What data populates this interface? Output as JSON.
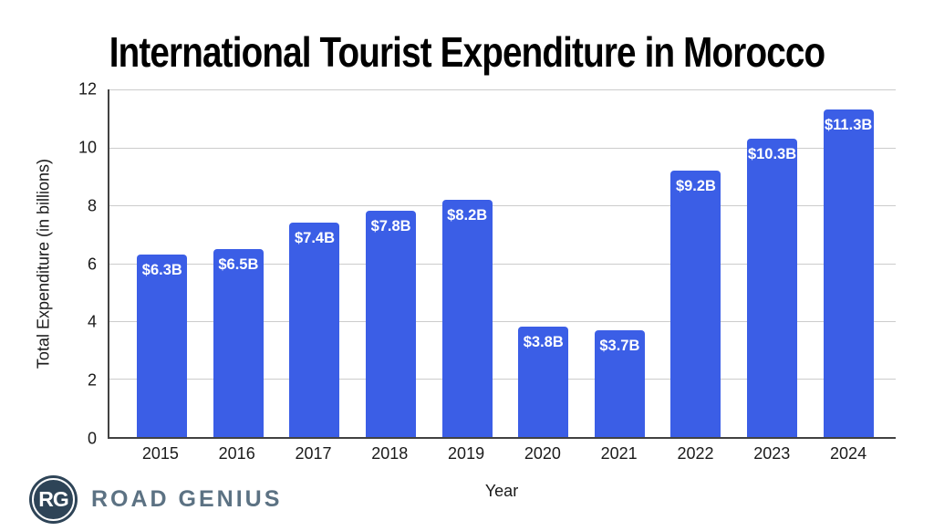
{
  "title": "International Tourist Expenditure in Morocco",
  "chart_data": {
    "type": "bar",
    "title": "International Tourist Expenditure in Morocco",
    "xlabel": "Year",
    "ylabel": "Total Expenditure (in billions)",
    "categories": [
      "2015",
      "2016",
      "2017",
      "2018",
      "2019",
      "2020",
      "2021",
      "2022",
      "2023",
      "2024"
    ],
    "values": [
      6.3,
      6.5,
      7.4,
      7.8,
      8.2,
      3.8,
      3.7,
      9.2,
      10.3,
      11.3
    ],
    "bar_labels": [
      "$6.3B",
      "$6.5B",
      "$7.4B",
      "$7.8B",
      "$8.2B",
      "$3.8B",
      "$3.7B",
      "$9.2B",
      "$10.3B",
      "$11.3B"
    ],
    "ylim": [
      0,
      12
    ],
    "ytick_labels": [
      "12",
      "10",
      "8",
      "6",
      "4",
      "2",
      "0"
    ],
    "grid": "horizontal",
    "legend": "none",
    "colors": {
      "bar": "#3b5ee6",
      "bar_label": "#ffffff",
      "gridline": "#cccccc",
      "axis": "#424242",
      "text": "#1a1a1a"
    }
  },
  "branding": {
    "monogram": "RG",
    "name": "ROAD GENIUS",
    "colors": {
      "circle": "#2e4457",
      "ring": "#ffffff",
      "text": "#5c7283"
    }
  }
}
